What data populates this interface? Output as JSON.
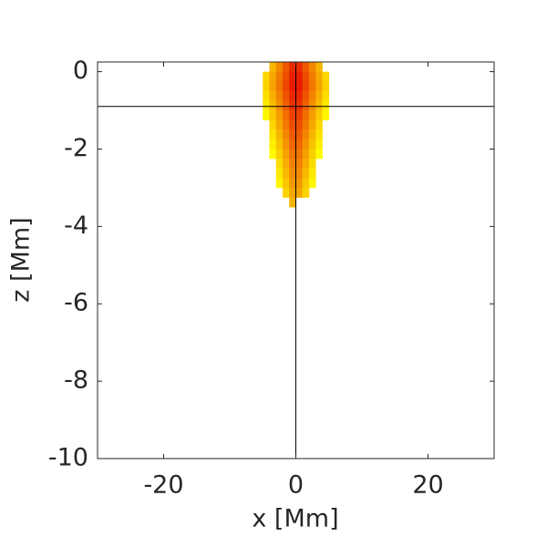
{
  "chart_data": {
    "type": "heatmap",
    "xlabel": "x [Mm]",
    "ylabel": "z [Mm]",
    "xlim": [
      -30,
      30
    ],
    "ylim": [
      -10,
      0.25
    ],
    "xticks": [
      -20,
      0,
      20
    ],
    "yticks": [
      0,
      -2,
      -4,
      -6,
      -8,
      -10
    ],
    "x_edges": [
      -5,
      -4,
      -3,
      -2,
      -1,
      0,
      1,
      2,
      3,
      4,
      5
    ],
    "z_edges": [
      0.25,
      0,
      -0.25,
      -0.5,
      -0.75,
      -1,
      -1.25,
      -1.5,
      -1.75,
      -2,
      -2.25,
      -2.5,
      -2.75,
      -3,
      -3.25,
      -3.5
    ],
    "values": [
      [
        null,
        0.29,
        0.47,
        0.65,
        0.83,
        0.83,
        0.65,
        0.47,
        0.29,
        null
      ],
      [
        0.16,
        0.34,
        0.52,
        0.7,
        0.88,
        0.88,
        0.7,
        0.52,
        0.34,
        0.16
      ],
      [
        0.18,
        0.36,
        0.54,
        0.72,
        0.9,
        0.9,
        0.72,
        0.54,
        0.36,
        0.18
      ],
      [
        0.13,
        0.31,
        0.49,
        0.67,
        0.85,
        0.85,
        0.67,
        0.49,
        0.31,
        0.13
      ],
      [
        0.08,
        0.26,
        0.44,
        0.62,
        0.8,
        0.8,
        0.62,
        0.44,
        0.26,
        0.08
      ],
      [
        0.03,
        0.21,
        0.39,
        0.57,
        0.75,
        0.75,
        0.57,
        0.39,
        0.21,
        0.03
      ],
      [
        null,
        0.16,
        0.34,
        0.52,
        0.7,
        0.7,
        0.52,
        0.34,
        0.16,
        null
      ],
      [
        null,
        0.11,
        0.29,
        0.47,
        0.65,
        0.65,
        0.47,
        0.29,
        0.11,
        null
      ],
      [
        null,
        0.06,
        0.24,
        0.42,
        0.6,
        0.6,
        0.42,
        0.24,
        0.06,
        null
      ],
      [
        null,
        0.01,
        0.19,
        0.37,
        0.55,
        0.55,
        0.37,
        0.19,
        0.01,
        null
      ],
      [
        null,
        null,
        0.14,
        0.32,
        0.5,
        0.5,
        0.32,
        0.14,
        null,
        null
      ],
      [
        null,
        null,
        0.09,
        0.27,
        0.45,
        0.45,
        0.27,
        0.09,
        null,
        null
      ],
      [
        null,
        null,
        0.04,
        0.22,
        0.4,
        0.4,
        0.22,
        0.04,
        null,
        null
      ],
      [
        null,
        null,
        null,
        0.17,
        0.35,
        0.35,
        0.17,
        null,
        null,
        null
      ],
      [
        null,
        null,
        null,
        null,
        0.3,
        null,
        null,
        null,
        null,
        null
      ]
    ],
    "colormap": [
      "#ffff00",
      "#e60000"
    ],
    "crosshair": {
      "x": 0,
      "z": -0.9
    }
  }
}
